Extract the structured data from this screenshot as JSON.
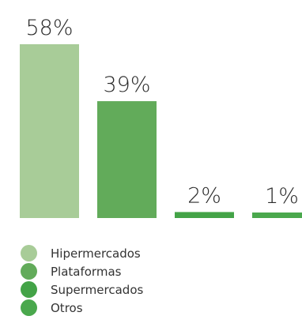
{
  "chart_data": {
    "type": "bar",
    "title": "",
    "xlabel": "",
    "ylabel": "",
    "ylim": [
      0,
      58
    ],
    "grid": false,
    "legend_position": "bottom-left",
    "categories": [
      "Hipermercados",
      "Plataformas",
      "Supermercados",
      "Otros"
    ],
    "values": [
      58,
      39,
      2,
      1
    ],
    "value_labels": [
      "58%",
      "39%",
      "2%",
      "1%"
    ],
    "colors": [
      "#a8cc98",
      "#62ab5a",
      "#43a347",
      "#4aa84d"
    ]
  },
  "legend": {
    "items": [
      {
        "label": "Hipermercados",
        "color": "#a8cc98"
      },
      {
        "label": "Plataformas",
        "color": "#62ab5a"
      },
      {
        "label": "Supermercados",
        "color": "#43a347"
      },
      {
        "label": "Otros",
        "color": "#4aa84d"
      }
    ]
  }
}
